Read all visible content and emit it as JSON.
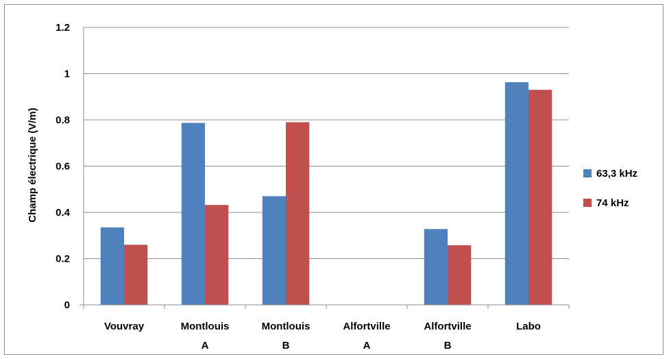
{
  "chart_data": {
    "type": "bar",
    "title": "",
    "xlabel": "",
    "ylabel": "Champ électrique (V/m)",
    "categories": [
      [
        "Vouvray"
      ],
      [
        "Montlouis",
        "A"
      ],
      [
        "Montlouis",
        "B"
      ],
      [
        "Alfortville",
        "A"
      ],
      [
        "Alfortville",
        "B"
      ],
      [
        "Labo"
      ]
    ],
    "series": [
      {
        "name": "63,3 kHz",
        "color": "#4f81bd",
        "values": [
          0.335,
          0.787,
          0.47,
          0,
          0.328,
          0.963
        ]
      },
      {
        "name": "74 kHz",
        "color": "#c0504d",
        "values": [
          0.26,
          0.432,
          0.79,
          0,
          0.258,
          0.93
        ]
      }
    ],
    "ylim": [
      0,
      1.2
    ],
    "yticks": [
      "0",
      "0.2",
      "0.4",
      "0.6",
      "0.8",
      "1",
      "1.2"
    ],
    "grid": true,
    "legend_position": "right"
  }
}
